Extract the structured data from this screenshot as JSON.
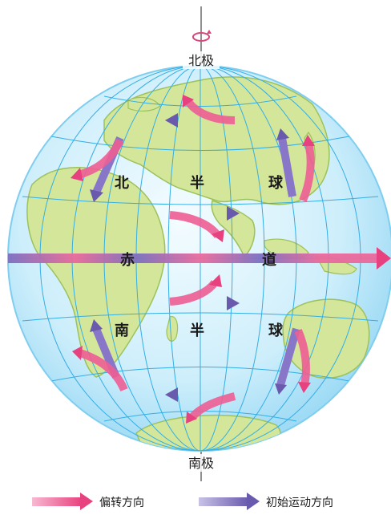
{
  "labels": {
    "north_pole": "北极",
    "south_pole": "南极",
    "northern_hemisphere": [
      "北",
      "半",
      "球"
    ],
    "equator": [
      "赤",
      "道"
    ],
    "southern_hemisphere": [
      "南",
      "半",
      "球"
    ]
  },
  "legend": {
    "deflection": "偏转方向",
    "initial": "初始运动方向"
  },
  "colors": {
    "ocean": "#cfeefb",
    "ocean_edge": "#8fd3f2",
    "land": "#d4e69a",
    "land_edge": "#9cc25c",
    "grid": "#33aee6",
    "deflection_arrow": "#ee5d94",
    "initial_arrow": "#7d6fbb"
  },
  "icons": {
    "rotation": "counter-clockwise-rotation-icon"
  }
}
